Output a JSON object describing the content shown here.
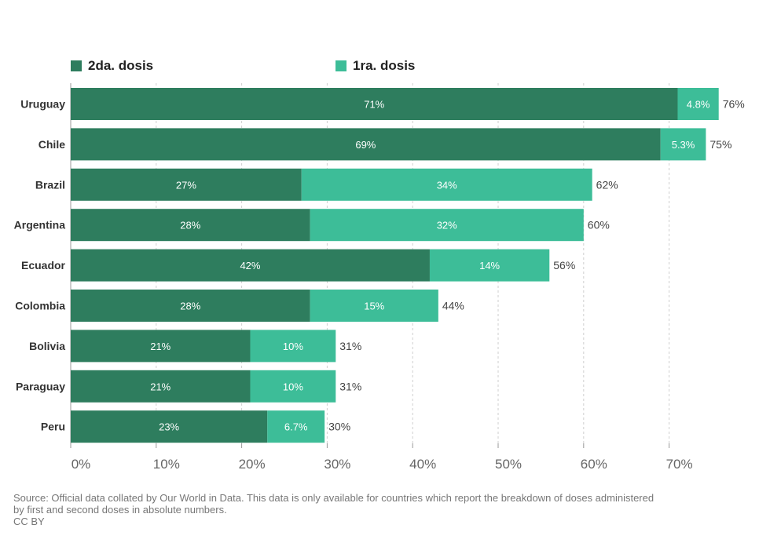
{
  "chart_data": {
    "type": "bar",
    "orientation": "horizontal",
    "stacked": true,
    "categories": [
      "Uruguay",
      "Chile",
      "Brazil",
      "Argentina",
      "Ecuador",
      "Colombia",
      "Bolivia",
      "Paraguay",
      "Peru"
    ],
    "series": [
      {
        "name": "2da. dosis",
        "color": "#2e7d5e",
        "values": [
          71,
          69,
          27,
          28,
          42,
          28,
          21,
          21,
          23
        ],
        "labels": [
          "71%",
          "69%",
          "27%",
          "28%",
          "42%",
          "28%",
          "21%",
          "21%",
          "23%"
        ]
      },
      {
        "name": "1ra. dosis",
        "color": "#3dbd98",
        "values": [
          4.8,
          5.3,
          34,
          32,
          14,
          15,
          10,
          10,
          6.7
        ],
        "labels": [
          "4.8%",
          "5.3%",
          "34%",
          "32%",
          "14%",
          "15%",
          "10%",
          "10%",
          "6.7%"
        ]
      }
    ],
    "totals": [
      "76%",
      "75%",
      "62%",
      "60%",
      "56%",
      "44%",
      "31%",
      "31%",
      "30%"
    ],
    "total_values": [
      76,
      75,
      62,
      60,
      56,
      44,
      31,
      31,
      30
    ],
    "xlim": [
      0,
      80
    ],
    "xticks": [
      0,
      10,
      20,
      30,
      40,
      50,
      60,
      70
    ],
    "xtick_labels": [
      "0%",
      "10%",
      "20%",
      "30%",
      "40%",
      "50%",
      "60%",
      "70%"
    ],
    "grid": true,
    "legend_position": "top-left"
  },
  "source": {
    "line1": "Source: Official data collated by Our World in Data. This data is only available for countries which report the breakdown of doses administered",
    "line2": "by first and second doses in absolute numbers.",
    "license": "CC BY"
  }
}
